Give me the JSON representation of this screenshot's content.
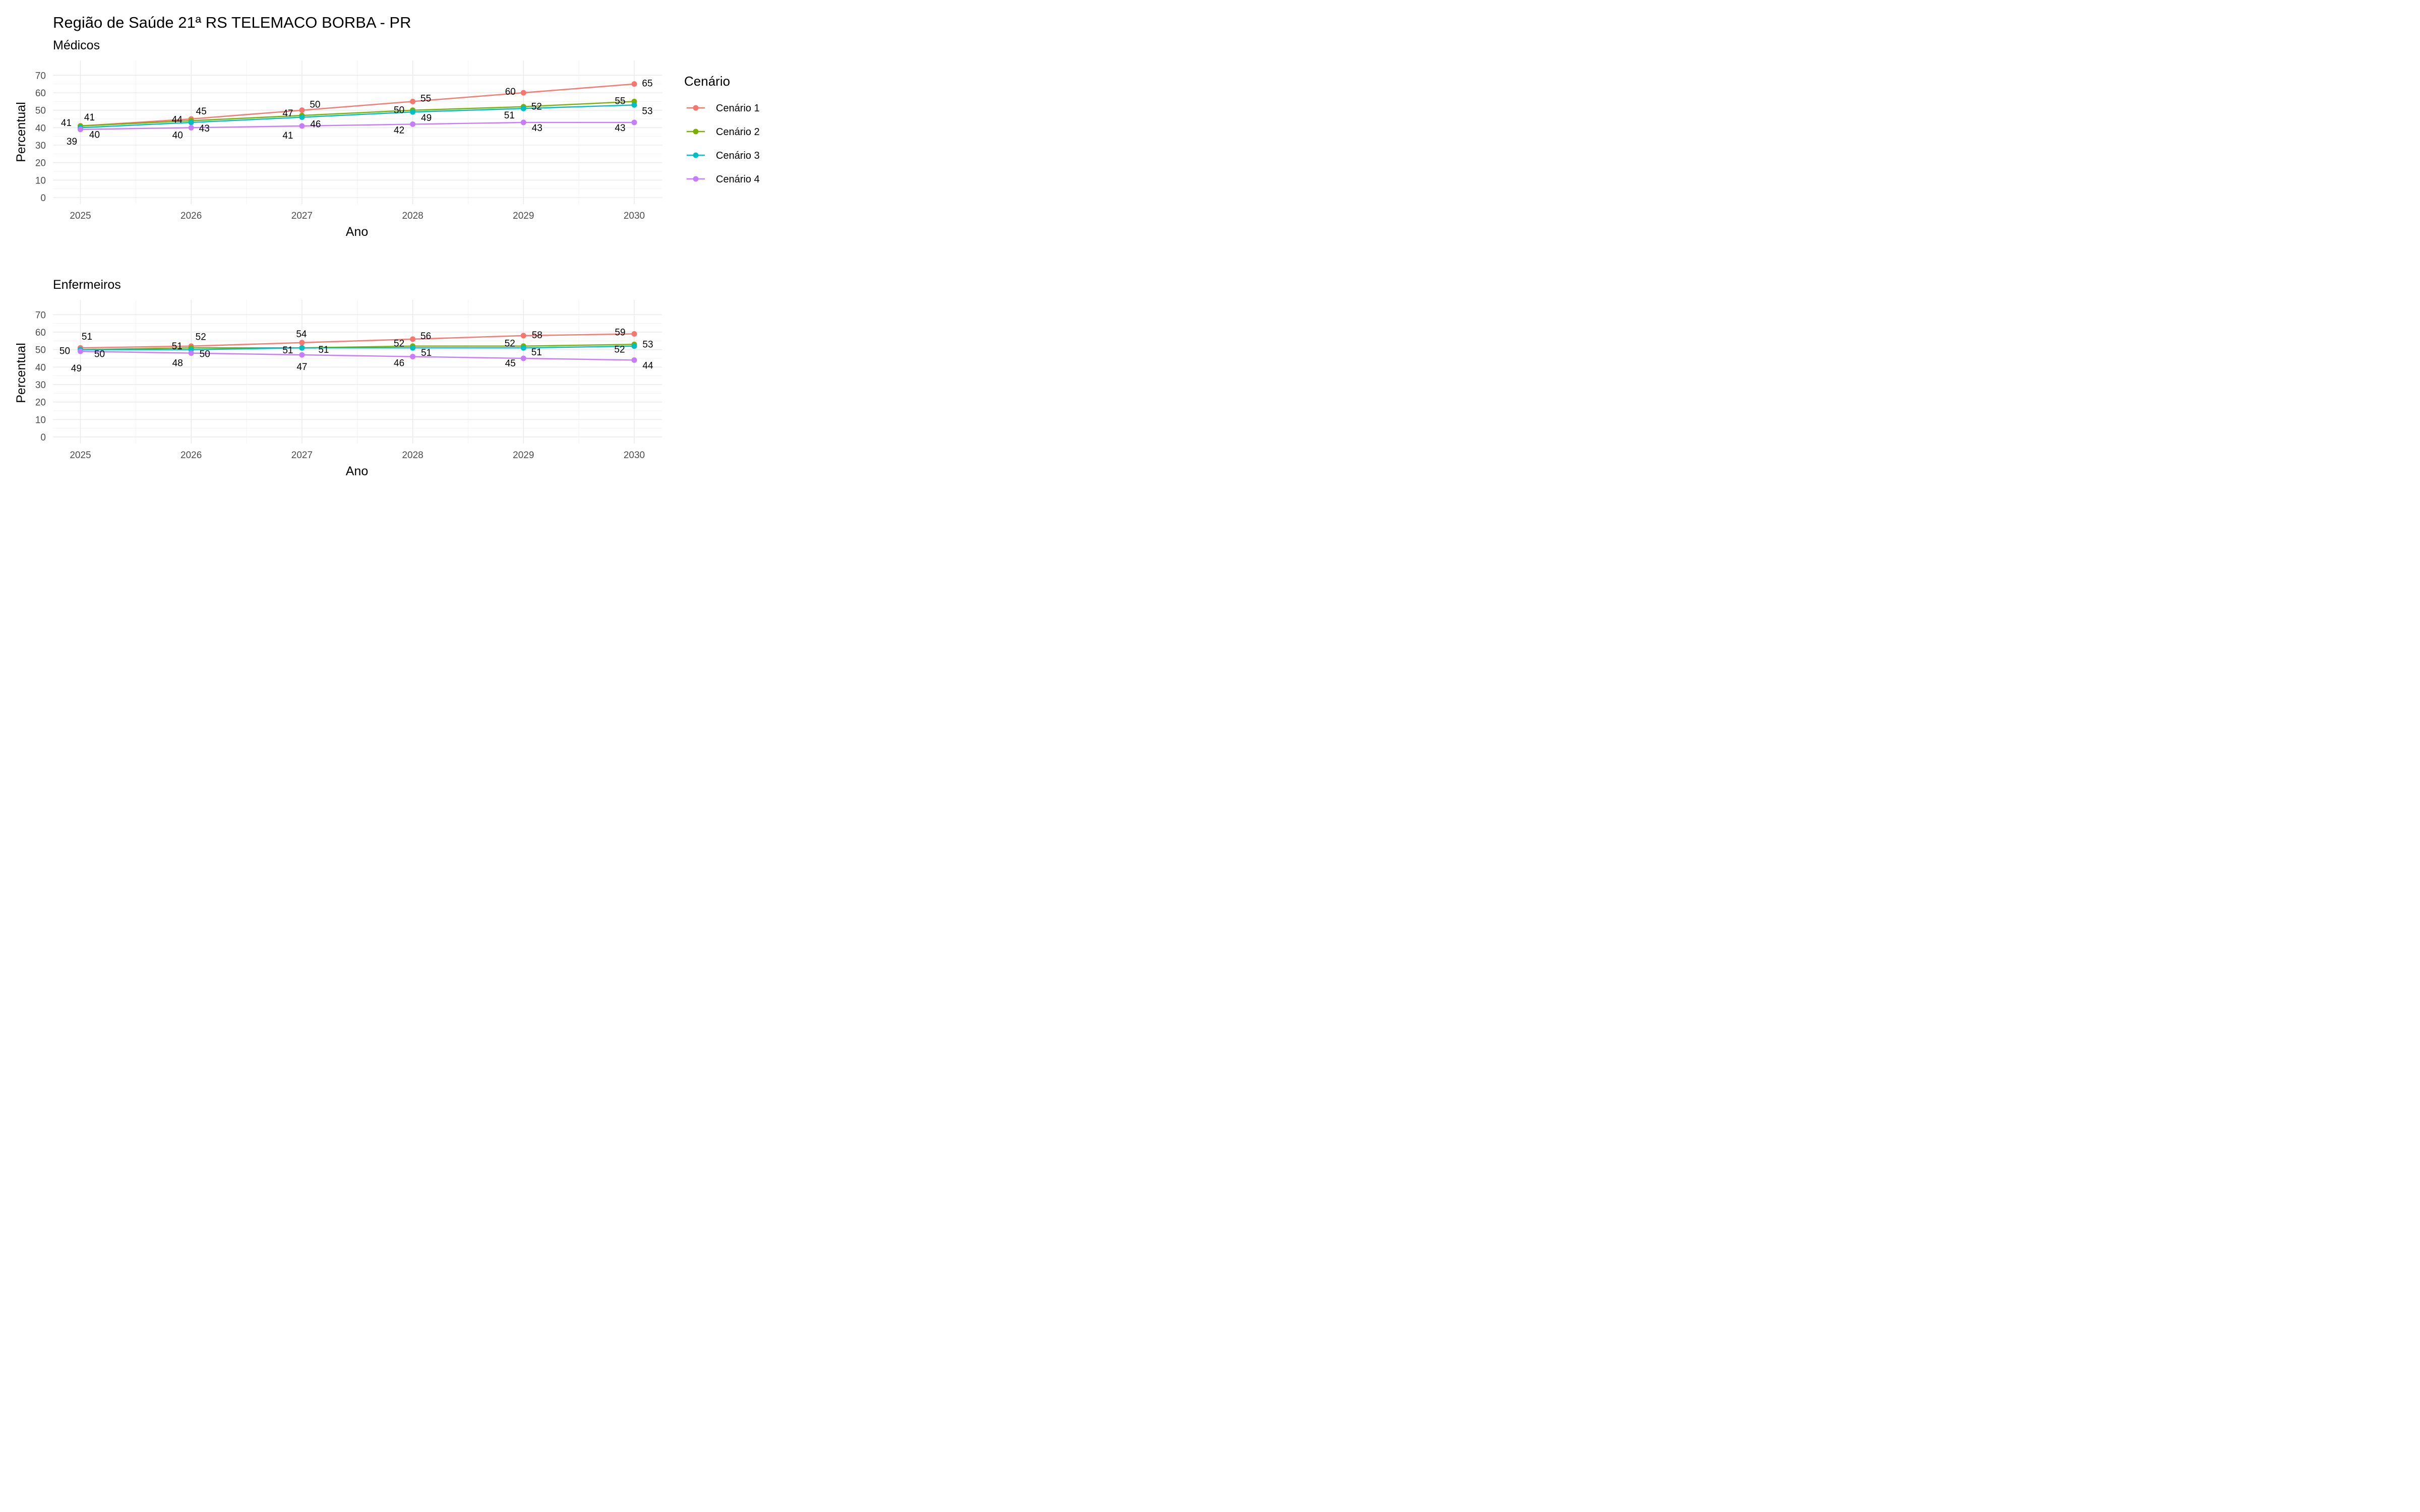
{
  "title": "Região de Saúde 21ª RS TELEMACO BORBA - PR",
  "legend": {
    "title": "Cenário",
    "items": [
      {
        "name": "Cenário 1",
        "color": "#F8766D"
      },
      {
        "name": "Cenário 2",
        "color": "#7CAE00"
      },
      {
        "name": "Cenário 3",
        "color": "#00BFC4"
      },
      {
        "name": "Cenário 4",
        "color": "#C77CFF"
      }
    ]
  },
  "chart_data": [
    {
      "type": "line",
      "title": "Médicos",
      "xlabel": "Ano",
      "ylabel": "Percentual",
      "x": [
        2025,
        2026,
        2027,
        2028,
        2029,
        2030
      ],
      "x_tick_labels": [
        "2025",
        "2026",
        "2027",
        "2028",
        "2029",
        "2030"
      ],
      "ylim": [
        0,
        75
      ],
      "y_ticks": [
        0,
        10,
        20,
        30,
        40,
        50,
        60,
        70
      ],
      "grid": true,
      "legend_position": "right",
      "series": [
        {
          "name": "Cenário 1",
          "color": "#F8766D",
          "values": [
            41,
            45,
            50,
            55,
            60,
            65
          ],
          "labels": [
            "41",
            "45",
            "50",
            "55",
            "60",
            "65"
          ]
        },
        {
          "name": "Cenário 2",
          "color": "#7CAE00",
          "values": [
            41,
            44,
            47,
            50,
            52,
            55
          ],
          "labels": [
            "41",
            "44",
            "47",
            "50",
            "52",
            "55"
          ]
        },
        {
          "name": "Cenário 3",
          "color": "#00BFC4",
          "values": [
            40,
            43,
            46,
            49,
            51,
            53
          ],
          "labels": [
            "40",
            "43",
            "46",
            "49",
            "51",
            "53"
          ]
        },
        {
          "name": "Cenário 4",
          "color": "#C77CFF",
          "values": [
            39,
            40,
            41,
            42,
            43,
            43
          ],
          "labels": [
            "39",
            "40",
            "41",
            "42",
            "43",
            "43"
          ]
        }
      ]
    },
    {
      "type": "line",
      "title": "Enfermeiros",
      "xlabel": "Ano",
      "ylabel": "Percentual",
      "x": [
        2025,
        2026,
        2027,
        2028,
        2029,
        2030
      ],
      "x_tick_labels": [
        "2025",
        "2026",
        "2027",
        "2028",
        "2029",
        "2030"
      ],
      "ylim": [
        0,
        75
      ],
      "y_ticks": [
        0,
        10,
        20,
        30,
        40,
        50,
        60,
        70
      ],
      "grid": true,
      "series": [
        {
          "name": "Cenário 1",
          "color": "#F8766D",
          "values": [
            51,
            52,
            54,
            56,
            58,
            59
          ],
          "labels": [
            "51",
            "52",
            "54",
            "56",
            "58",
            "59"
          ]
        },
        {
          "name": "Cenário 2",
          "color": "#7CAE00",
          "values": [
            50,
            51,
            51,
            52,
            52,
            53
          ],
          "labels": [
            "50",
            "51",
            "51",
            "52",
            "52",
            "53"
          ]
        },
        {
          "name": "Cenário 3",
          "color": "#00BFC4",
          "values": [
            50,
            50,
            51,
            51,
            51,
            52
          ],
          "labels": [
            "50",
            "50",
            "51",
            "51",
            "51",
            "52"
          ]
        },
        {
          "name": "Cenário 4",
          "color": "#C77CFF",
          "values": [
            49,
            48,
            47,
            46,
            45,
            44
          ],
          "labels": [
            "49",
            "48",
            "47",
            "46",
            "45",
            "44"
          ]
        }
      ]
    }
  ]
}
